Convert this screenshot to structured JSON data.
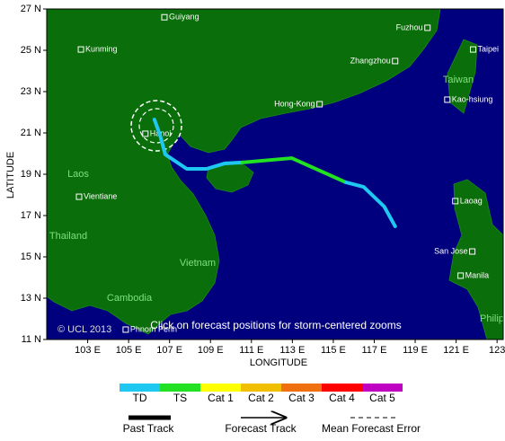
{
  "map": {
    "xlabel": "LONGITUDE",
    "ylabel": "LATITUDE",
    "xlim": [
      101,
      123.3
    ],
    "ylim": [
      11,
      27
    ],
    "xticks": [
      {
        "value": 103,
        "label": "103 E"
      },
      {
        "value": 105,
        "label": "105 E"
      },
      {
        "value": 107,
        "label": "107 E"
      },
      {
        "value": 109,
        "label": "109 E"
      },
      {
        "value": 111,
        "label": "111 E"
      },
      {
        "value": 113,
        "label": "113 E"
      },
      {
        "value": 115,
        "label": "115 E"
      },
      {
        "value": 117,
        "label": "117 E"
      },
      {
        "value": 119,
        "label": "119 E"
      },
      {
        "value": 121,
        "label": "121 E"
      },
      {
        "value": 123,
        "label": "123"
      }
    ],
    "yticks": [
      {
        "value": 11,
        "label": "11 N"
      },
      {
        "value": 13,
        "label": "13 N"
      },
      {
        "value": 15,
        "label": "15 N"
      },
      {
        "value": 17,
        "label": "17 N"
      },
      {
        "value": 19,
        "label": "19 N"
      },
      {
        "value": 21,
        "label": "21 N"
      },
      {
        "value": 23,
        "label": "23 N"
      },
      {
        "value": 25,
        "label": "25 N"
      },
      {
        "value": 27,
        "label": "27 N"
      }
    ],
    "cities": [
      {
        "name": "Guiyang",
        "lon": 106.75,
        "lat": 26.6
      },
      {
        "name": "Kunming",
        "lon": 102.67,
        "lat": 25.04
      },
      {
        "name": "Fuzhou",
        "lon": 119.6,
        "lat": 26.09
      },
      {
        "name": "Taipei",
        "lon": 121.83,
        "lat": 25.04
      },
      {
        "name": "Zhangzhou",
        "lon": 118.02,
        "lat": 24.48
      },
      {
        "name": "Kao-hsiung",
        "lon": 120.57,
        "lat": 22.61
      },
      {
        "name": "Hong-Kong",
        "lon": 114.33,
        "lat": 22.39
      },
      {
        "name": "Hanoi",
        "lon": 105.82,
        "lat": 20.96
      },
      {
        "name": "Vientiane",
        "lon": 102.58,
        "lat": 17.91
      },
      {
        "name": "Laoag",
        "lon": 120.96,
        "lat": 17.7
      },
      {
        "name": "San Jose",
        "lon": 121.79,
        "lat": 15.26
      },
      {
        "name": "Manila",
        "lon": 121.22,
        "lat": 14.09
      },
      {
        "name": "Phnom Penh",
        "lon": 104.86,
        "lat": 11.48
      }
    ],
    "regions": [
      "Laos",
      "Thailand",
      "Vietnam",
      "Cambodia",
      "Taiwan",
      "Philip"
    ],
    "track": [
      {
        "category": "TD",
        "lon": [
          106.26,
          106.53,
          106.79,
          107.84,
          108.81,
          109.68,
          110.56
        ],
        "lat": [
          21.65,
          20.91,
          19.96,
          19.26,
          19.26,
          19.52,
          19.57
        ]
      },
      {
        "category": "TS",
        "lon": [
          110.56,
          112.97,
          115.61
        ],
        "lat": [
          19.57,
          19.78,
          18.61
        ]
      },
      {
        "category": "TD",
        "lon": [
          115.61,
          116.48,
          117.49,
          118.02
        ],
        "lat": [
          18.61,
          18.39,
          17.43,
          16.48
        ]
      }
    ],
    "copyright": "© UCL 2013",
    "hint": "Click on forecast positions for storm-centered zooms"
  },
  "legend": {
    "categories": [
      {
        "name": "TD",
        "color": "#1ec8f0"
      },
      {
        "name": "TS",
        "color": "#22e022"
      },
      {
        "name": "Cat 1",
        "color": "#ffff00"
      },
      {
        "name": "Cat 2",
        "color": "#f0c000"
      },
      {
        "name": "Cat 3",
        "color": "#f07010"
      },
      {
        "name": "Cat 4",
        "color": "#ff0000"
      },
      {
        "name": "Cat 5",
        "color": "#c000c0"
      }
    ],
    "lines": [
      "Past Track",
      "Forecast Track",
      "Mean Forecast Error"
    ]
  }
}
